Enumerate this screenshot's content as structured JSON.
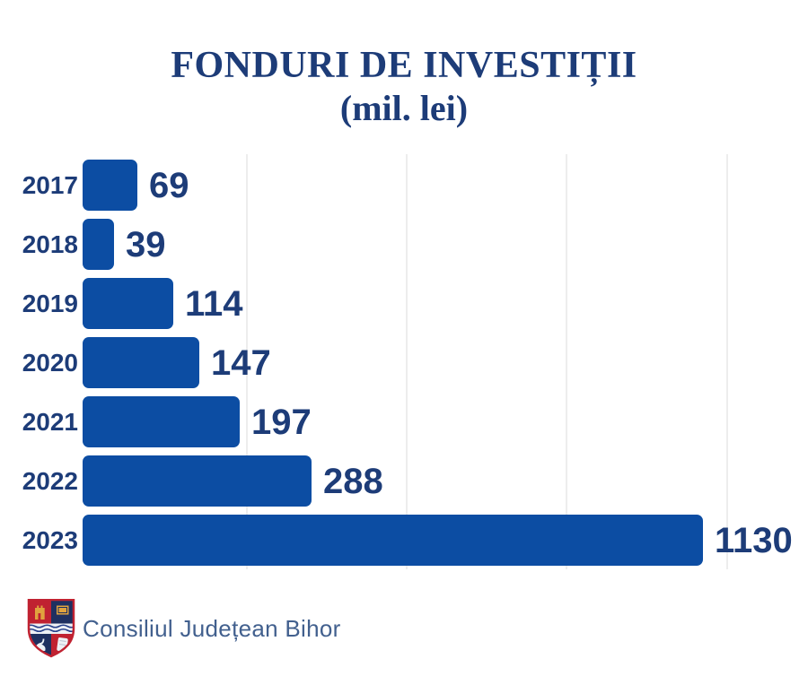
{
  "title": {
    "line1": "FONDURI DE INVESTIȚII",
    "line2": "(mil. lei)"
  },
  "chart_data": {
    "type": "bar",
    "orientation": "horizontal",
    "categories": [
      "2017",
      "2018",
      "2019",
      "2020",
      "2021",
      "2022",
      "2023"
    ],
    "values": [
      69,
      39,
      114,
      147,
      197,
      288,
      1130
    ],
    "title": "FONDURI DE INVESTIȚII",
    "subtitle": "(mil. lei)",
    "unit": "mil. lei",
    "xlabel": "",
    "ylabel": "",
    "axis_tick_labels": "none (values shown as data labels at bar ends)",
    "grid": "4 faint vertical gridlines, unlabeled",
    "legend": "none",
    "bar_color": "#0c4da3",
    "label_color": "#1d3c78",
    "layout_hint": "bars scaled ~0.887px per unit; 2023 bar capped to chart width"
  },
  "footer": {
    "org_name": "Consiliul Județean Bihor",
    "logo": "bihor-county-coat-of-arms"
  },
  "colors": {
    "background": "#ffffff",
    "bar": "#0c4da3",
    "text_navy": "#1d3c78",
    "footer_text": "#42608e",
    "gridline": "#ededed",
    "shield_red": "#c02231",
    "shield_navy": "#1f3060",
    "shield_gold": "#e0a33e",
    "shield_white": "#eef1f5"
  }
}
